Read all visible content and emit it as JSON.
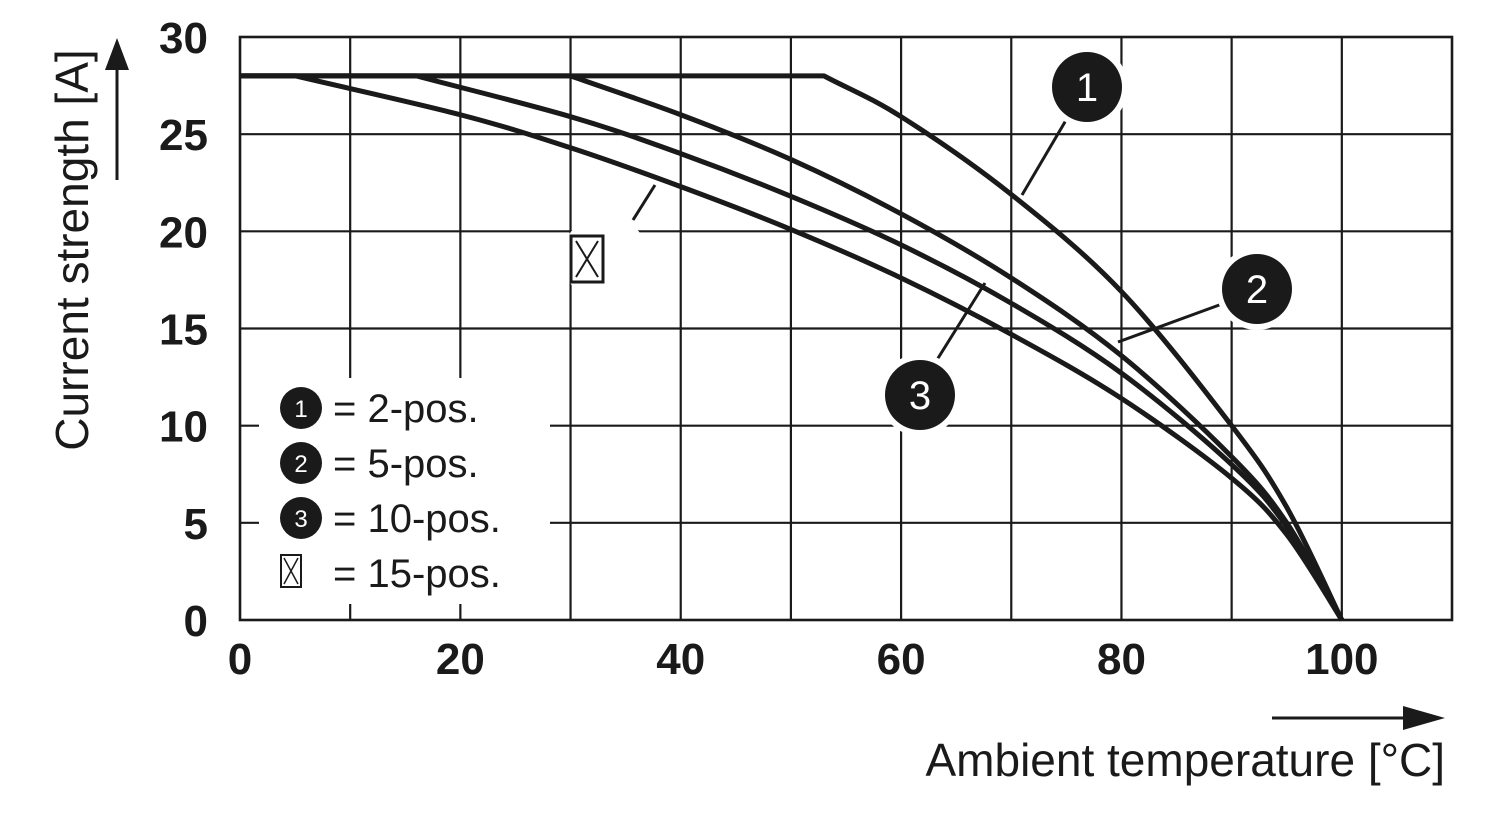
{
  "chart_data": {
    "type": "line",
    "xlabel": "Ambient temperature [°C]",
    "ylabel": "Current strength [A]",
    "xlim": [
      0,
      110
    ],
    "ylim": [
      0,
      30
    ],
    "x_ticks": [
      "0",
      "20",
      "40",
      "60",
      "80",
      "100"
    ],
    "y_ticks": [
      "0",
      "5",
      "10",
      "15",
      "20",
      "25",
      "30"
    ],
    "grid": true,
    "legend_placement": "bottom-left",
    "series": [
      {
        "name": "2-pos.",
        "callout": "1",
        "x": [
          0,
          53,
          60,
          70,
          80,
          90,
          95,
          100
        ],
        "y": [
          28,
          28,
          25.9,
          21.9,
          16.9,
          10.0,
          5.8,
          0
        ]
      },
      {
        "name": "5-pos.",
        "callout": "2",
        "x": [
          0,
          30,
          40,
          50,
          60,
          70,
          80,
          90,
          95,
          100
        ],
        "y": [
          28,
          28,
          26.0,
          23.7,
          20.9,
          17.6,
          13.6,
          8.4,
          5.0,
          0
        ]
      },
      {
        "name": "10-pos.",
        "callout": "3",
        "x": [
          0,
          16,
          30,
          40,
          50,
          60,
          70,
          80,
          90,
          95,
          100
        ],
        "y": [
          28,
          28,
          25.9,
          24.0,
          21.8,
          19.3,
          16.3,
          12.7,
          8.0,
          4.8,
          0
        ]
      },
      {
        "name": "15-pos.",
        "callout": "",
        "x": [
          0,
          5,
          20,
          30,
          40,
          50,
          60,
          70,
          80,
          90,
          95,
          100
        ],
        "y": [
          28,
          28,
          26.0,
          24.3,
          22.3,
          20.1,
          17.6,
          14.7,
          11.4,
          7.3,
          4.4,
          0
        ]
      }
    ],
    "legend": [
      {
        "marker": "1",
        "label": "= 2-pos."
      },
      {
        "marker": "2",
        "label": "= 5-pos."
      },
      {
        "marker": "3",
        "label": "= 10-pos."
      },
      {
        "marker": "",
        "label": "= 15-pos."
      }
    ]
  }
}
